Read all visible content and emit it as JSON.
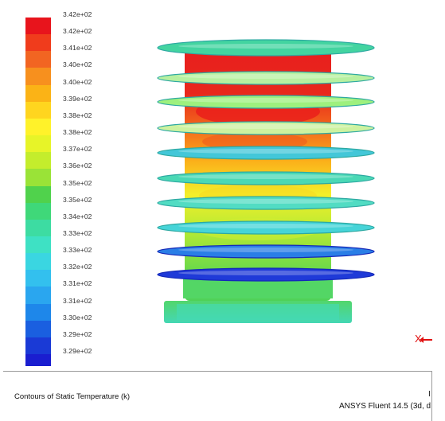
{
  "colormap": {
    "labels": [
      "3.42e+02",
      "3.42e+02",
      "3.41e+02",
      "3.40e+02",
      "3.40e+02",
      "3.39e+02",
      "3.38e+02",
      "3.38e+02",
      "3.37e+02",
      "3.36e+02",
      "3.35e+02",
      "3.35e+02",
      "3.34e+02",
      "3.33e+02",
      "3.33e+02",
      "3.32e+02",
      "3.31e+02",
      "3.31e+02",
      "3.30e+02",
      "3.29e+02",
      "3.29e+02"
    ],
    "colors": [
      "#e8141c",
      "#f03c1c",
      "#f26522",
      "#f7901e",
      "#fbb316",
      "#ffd51f",
      "#fff22a",
      "#e7f428",
      "#c4ed2c",
      "#9ae337",
      "#50d24c",
      "#3fd879",
      "#3ddca2",
      "#3ee1c4",
      "#3ad6e1",
      "#33c0ee",
      "#2aa6ef",
      "#1e87ea",
      "#1a5fe0",
      "#1a3ad6",
      "#1a1ed0"
    ]
  },
  "model": {
    "disks_top_to_bottom": [
      "#43d4a0",
      "#b7f0a0",
      "#9ef07e",
      "#cdf2a0",
      "#43c7d8",
      "#4ad8b5",
      "#52dcc3",
      "#46d4d8",
      "#2a7ee6",
      "#1f3ad8"
    ]
  },
  "axis": {
    "label": "X"
  },
  "footer": {
    "caption": "Contours of Static Temperature (k)",
    "product": "ANSYS Fluent 14.5 (3d, d",
    "mark": "I"
  }
}
